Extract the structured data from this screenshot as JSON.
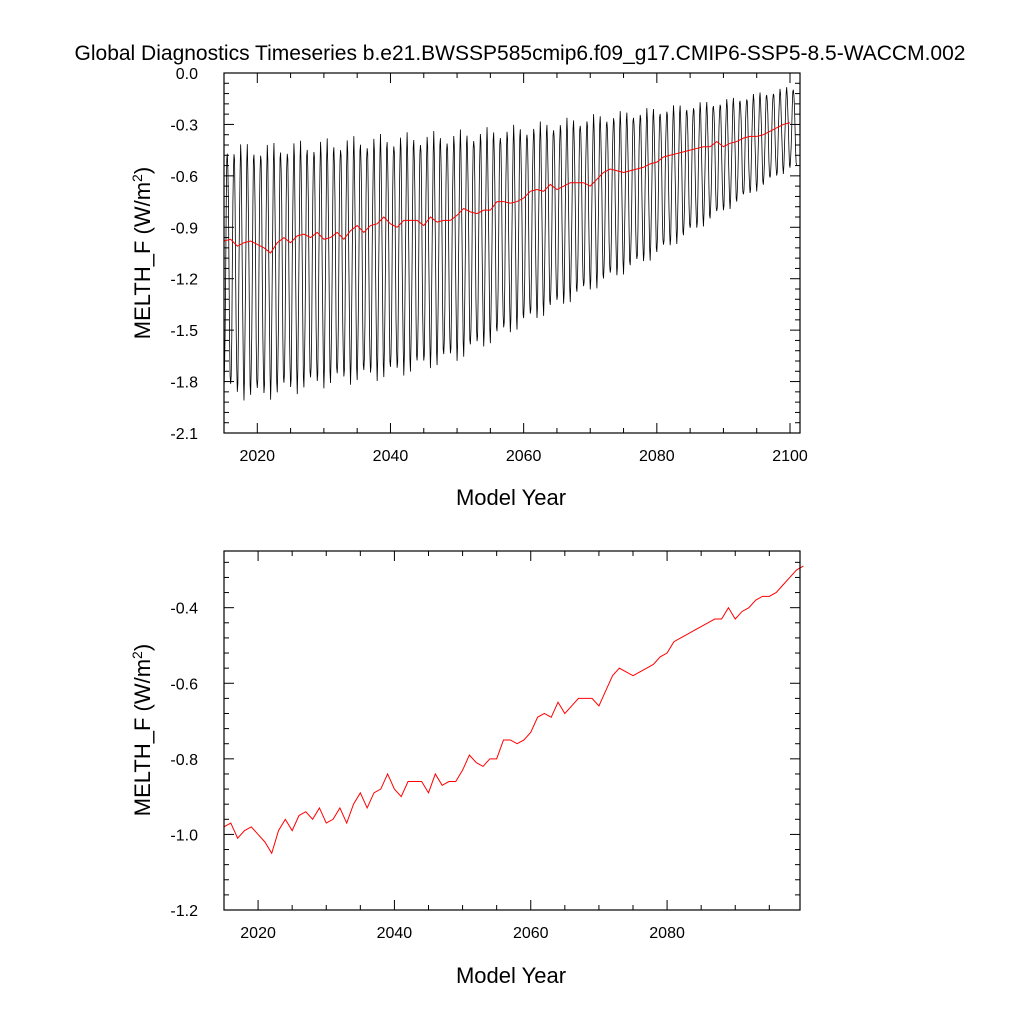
{
  "figure_title": "Global Diagnostics Timeseries b.e21.BWSSP585cmip6.f09_g17.CMIP6-SSP5-8.5-WACCM.002",
  "colors": {
    "monthly": "#000000",
    "annual": "#ff0000",
    "axis": "#000000"
  },
  "chart_data": [
    {
      "type": "line",
      "title": "Global Diagnostics Timeseries b.e21.BWSSP585cmip6.f09_g17.CMIP6-SSP5-8.5-WACCM.002",
      "xlabel": "Model Year",
      "ylabel_main": "MELTH_F (W/m",
      "ylabel_sup": "2",
      "ylabel_close": ")",
      "xlim": [
        2015,
        2101.5
      ],
      "ylim": [
        -2.1,
        0.0
      ],
      "xticks": [
        2020,
        2040,
        2060,
        2080,
        2100
      ],
      "xtick_labels": [
        "2020",
        "2040",
        "2060",
        "2080",
        "2100"
      ],
      "yticks": [
        0.0,
        -0.3,
        -0.6,
        -0.9,
        -1.2,
        -1.5,
        -1.8,
        -2.1
      ],
      "ytick_labels": [
        "0.0",
        "-0.3",
        "-0.6",
        "-0.9",
        "-1.2",
        "-1.5",
        "-1.8",
        "-2.1"
      ],
      "grid": false,
      "series": [
        {
          "style": "monthly-envelope",
          "x": [
            2015,
            2020,
            2030,
            2040,
            2050,
            2060,
            2070,
            2080,
            2090,
            2100
          ],
          "annual_max": [
            -0.44,
            -0.45,
            -0.42,
            -0.39,
            -0.37,
            -0.33,
            -0.27,
            -0.22,
            -0.17,
            -0.09
          ],
          "annual_min": [
            -1.85,
            -1.88,
            -1.8,
            -1.75,
            -1.65,
            -1.45,
            -1.25,
            -1.05,
            -0.8,
            -0.55
          ]
        },
        {
          "style": "annual-mean",
          "x": [
            2015,
            2016,
            2017,
            2018,
            2019,
            2020,
            2021,
            2022,
            2023,
            2024,
            2025,
            2026,
            2027,
            2028,
            2029,
            2030,
            2031,
            2032,
            2033,
            2034,
            2035,
            2036,
            2037,
            2038,
            2039,
            2040,
            2041,
            2042,
            2043,
            2044,
            2045,
            2046,
            2047,
            2048,
            2049,
            2050,
            2051,
            2052,
            2053,
            2054,
            2055,
            2056,
            2057,
            2058,
            2059,
            2060,
            2061,
            2062,
            2063,
            2064,
            2065,
            2066,
            2067,
            2068,
            2069,
            2070,
            2071,
            2072,
            2073,
            2074,
            2075,
            2076,
            2077,
            2078,
            2079,
            2080,
            2081,
            2082,
            2083,
            2084,
            2085,
            2086,
            2087,
            2088,
            2089,
            2090,
            2091,
            2092,
            2093,
            2094,
            2095,
            2096,
            2097,
            2098,
            2099,
            2100
          ],
          "values": [
            -0.98,
            -0.97,
            -1.01,
            -0.99,
            -0.98,
            -1.0,
            -1.02,
            -1.05,
            -0.99,
            -0.96,
            -0.99,
            -0.95,
            -0.94,
            -0.96,
            -0.93,
            -0.97,
            -0.96,
            -0.93,
            -0.97,
            -0.92,
            -0.89,
            -0.93,
            -0.89,
            -0.88,
            -0.84,
            -0.88,
            -0.9,
            -0.86,
            -0.86,
            -0.86,
            -0.89,
            -0.84,
            -0.87,
            -0.86,
            -0.86,
            -0.83,
            -0.79,
            -0.81,
            -0.82,
            -0.8,
            -0.8,
            -0.75,
            -0.75,
            -0.76,
            -0.75,
            -0.73,
            -0.69,
            -0.68,
            -0.69,
            -0.65,
            -0.68,
            -0.66,
            -0.64,
            -0.64,
            -0.64,
            -0.66,
            -0.62,
            -0.58,
            -0.56,
            -0.57,
            -0.58,
            -0.57,
            -0.56,
            -0.55,
            -0.53,
            -0.52,
            -0.49,
            -0.48,
            -0.47,
            -0.46,
            -0.45,
            -0.44,
            -0.43,
            -0.43,
            -0.4,
            -0.43,
            -0.41,
            -0.4,
            -0.38,
            -0.37,
            -0.37,
            -0.36,
            -0.34,
            -0.32,
            -0.3,
            -0.29
          ]
        }
      ]
    },
    {
      "type": "line",
      "xlabel": "Model Year",
      "ylabel_main": "MELTH_F (W/m",
      "ylabel_sup": "2",
      "ylabel_close": ")",
      "xlim": [
        2015,
        2099.5
      ],
      "ylim": [
        -1.2,
        -0.25
      ],
      "xticks": [
        2020,
        2040,
        2060,
        2080
      ],
      "xtick_labels": [
        "2020",
        "2040",
        "2060",
        "2080"
      ],
      "yticks": [
        -0.4,
        -0.6,
        -0.8,
        -1.0,
        -1.2
      ],
      "ytick_labels": [
        "-0.4",
        "-0.6",
        "-0.8",
        "-1.0",
        "-1.2"
      ],
      "grid": false,
      "series": [
        {
          "style": "annual-mean",
          "x": [
            2015,
            2016,
            2017,
            2018,
            2019,
            2020,
            2021,
            2022,
            2023,
            2024,
            2025,
            2026,
            2027,
            2028,
            2029,
            2030,
            2031,
            2032,
            2033,
            2034,
            2035,
            2036,
            2037,
            2038,
            2039,
            2040,
            2041,
            2042,
            2043,
            2044,
            2045,
            2046,
            2047,
            2048,
            2049,
            2050,
            2051,
            2052,
            2053,
            2054,
            2055,
            2056,
            2057,
            2058,
            2059,
            2060,
            2061,
            2062,
            2063,
            2064,
            2065,
            2066,
            2067,
            2068,
            2069,
            2070,
            2071,
            2072,
            2073,
            2074,
            2075,
            2076,
            2077,
            2078,
            2079,
            2080,
            2081,
            2082,
            2083,
            2084,
            2085,
            2086,
            2087,
            2088,
            2089,
            2090,
            2091,
            2092,
            2093,
            2094,
            2095,
            2096,
            2097,
            2098,
            2099,
            2100
          ],
          "values": [
            -0.98,
            -0.97,
            -1.01,
            -0.99,
            -0.98,
            -1.0,
            -1.02,
            -1.05,
            -0.99,
            -0.96,
            -0.99,
            -0.95,
            -0.94,
            -0.96,
            -0.93,
            -0.97,
            -0.96,
            -0.93,
            -0.97,
            -0.92,
            -0.89,
            -0.93,
            -0.89,
            -0.88,
            -0.84,
            -0.88,
            -0.9,
            -0.86,
            -0.86,
            -0.86,
            -0.89,
            -0.84,
            -0.87,
            -0.86,
            -0.86,
            -0.83,
            -0.79,
            -0.81,
            -0.82,
            -0.8,
            -0.8,
            -0.75,
            -0.75,
            -0.76,
            -0.75,
            -0.73,
            -0.69,
            -0.68,
            -0.69,
            -0.65,
            -0.68,
            -0.66,
            -0.64,
            -0.64,
            -0.64,
            -0.66,
            -0.62,
            -0.58,
            -0.56,
            -0.57,
            -0.58,
            -0.57,
            -0.56,
            -0.55,
            -0.53,
            -0.52,
            -0.49,
            -0.48,
            -0.47,
            -0.46,
            -0.45,
            -0.44,
            -0.43,
            -0.43,
            -0.4,
            -0.43,
            -0.41,
            -0.4,
            -0.38,
            -0.37,
            -0.37,
            -0.36,
            -0.34,
            -0.32,
            -0.3,
            -0.29
          ]
        }
      ]
    }
  ]
}
